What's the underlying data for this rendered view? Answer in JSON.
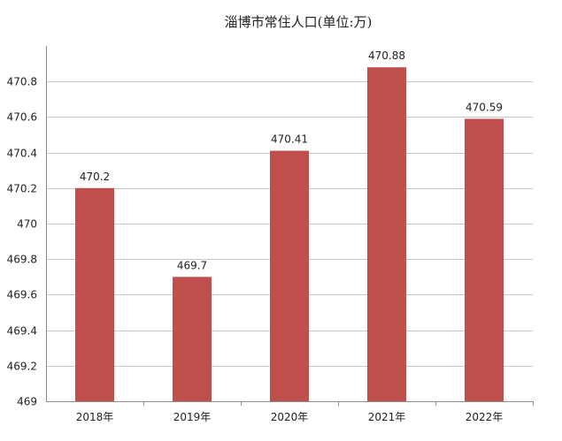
{
  "chart_data": {
    "type": "bar",
    "title": "淄博市常住人口(单位:万)",
    "categories": [
      "2018年",
      "2019年",
      "2020年",
      "2021年",
      "2022年"
    ],
    "values": [
      470.2,
      469.7,
      470.41,
      470.88,
      470.59
    ],
    "data_labels": [
      "470.2",
      "469.7",
      "470.41",
      "470.88",
      "470.59"
    ],
    "ylim": [
      469,
      471
    ],
    "y_ticks": [
      469,
      469.2,
      469.4,
      469.6,
      469.8,
      470,
      470.2,
      470.4,
      470.6,
      470.8
    ],
    "y_tick_labels": [
      "469",
      "469.2",
      "469.4",
      "469.6",
      "469.8",
      "470",
      "470.2",
      "470.4",
      "470.6",
      "470.8"
    ],
    "xlabel": "",
    "ylabel": "",
    "grid": true,
    "legend": "none",
    "bar_color": "#c0504d"
  }
}
